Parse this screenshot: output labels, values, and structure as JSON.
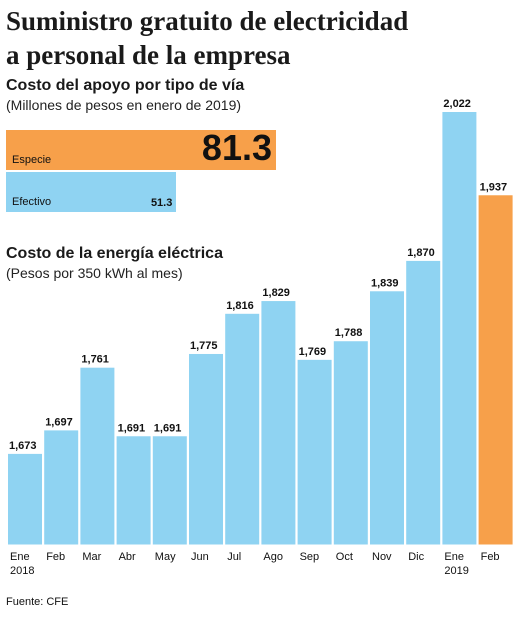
{
  "title": {
    "line1": "Suministro gratuito de electricidad",
    "line2": "a personal de la empresa"
  },
  "support": {
    "heading": "Costo del apoyo por tipo de vía",
    "units": "(Millones de pesos en enero de 2019)"
  },
  "energy": {
    "heading": "Costo de la energía eléctrica",
    "units": "(Pesos por 350 kWh al mes)"
  },
  "source": "Fuente: CFE",
  "colors": {
    "blue": "#8fd3f2",
    "orange": "#f7a04a",
    "text": "#111111"
  },
  "chart_data": [
    {
      "type": "bar",
      "orientation": "horizontal",
      "title": "Costo del apoyo por tipo de vía",
      "subtitle": "(Millones de pesos en enero de 2019)",
      "categories": [
        "Especie",
        "Efectivo"
      ],
      "values": [
        81.3,
        51.3
      ],
      "value_labels": [
        "81.3",
        "51.3"
      ],
      "colors": [
        "#f7a04a",
        "#8fd3f2"
      ]
    },
    {
      "type": "bar",
      "title": "Costo de la energía eléctrica",
      "subtitle": "(Pesos por 350 kWh al mes)",
      "categories": [
        "Ene",
        "Feb",
        "Mar",
        "Abr",
        "May",
        "Jun",
        "Jul",
        "Ago",
        "Sep",
        "Oct",
        "Nov",
        "Dic",
        "Ene",
        "Feb"
      ],
      "year_labels": [
        "2018",
        "",
        "",
        "",
        "",
        "",
        "",
        "",
        "",
        "",
        "",
        "",
        "2019",
        ""
      ],
      "values": [
        1673,
        1697,
        1761,
        1691,
        1691,
        1775,
        1816,
        1829,
        1769,
        1788,
        1839,
        1870,
        2022,
        1937
      ],
      "value_labels": [
        "1,673",
        "1,697",
        "1,761",
        "1,691",
        "1,691",
        "1,775",
        "1,816",
        "1,829",
        "1,769",
        "1,788",
        "1,839",
        "1,870",
        "2,022",
        "1,937"
      ],
      "highlight_index": 13,
      "bar_color": "#8fd3f2",
      "highlight_color": "#f7a04a",
      "grid": false,
      "y_axis_visible": false
    }
  ]
}
